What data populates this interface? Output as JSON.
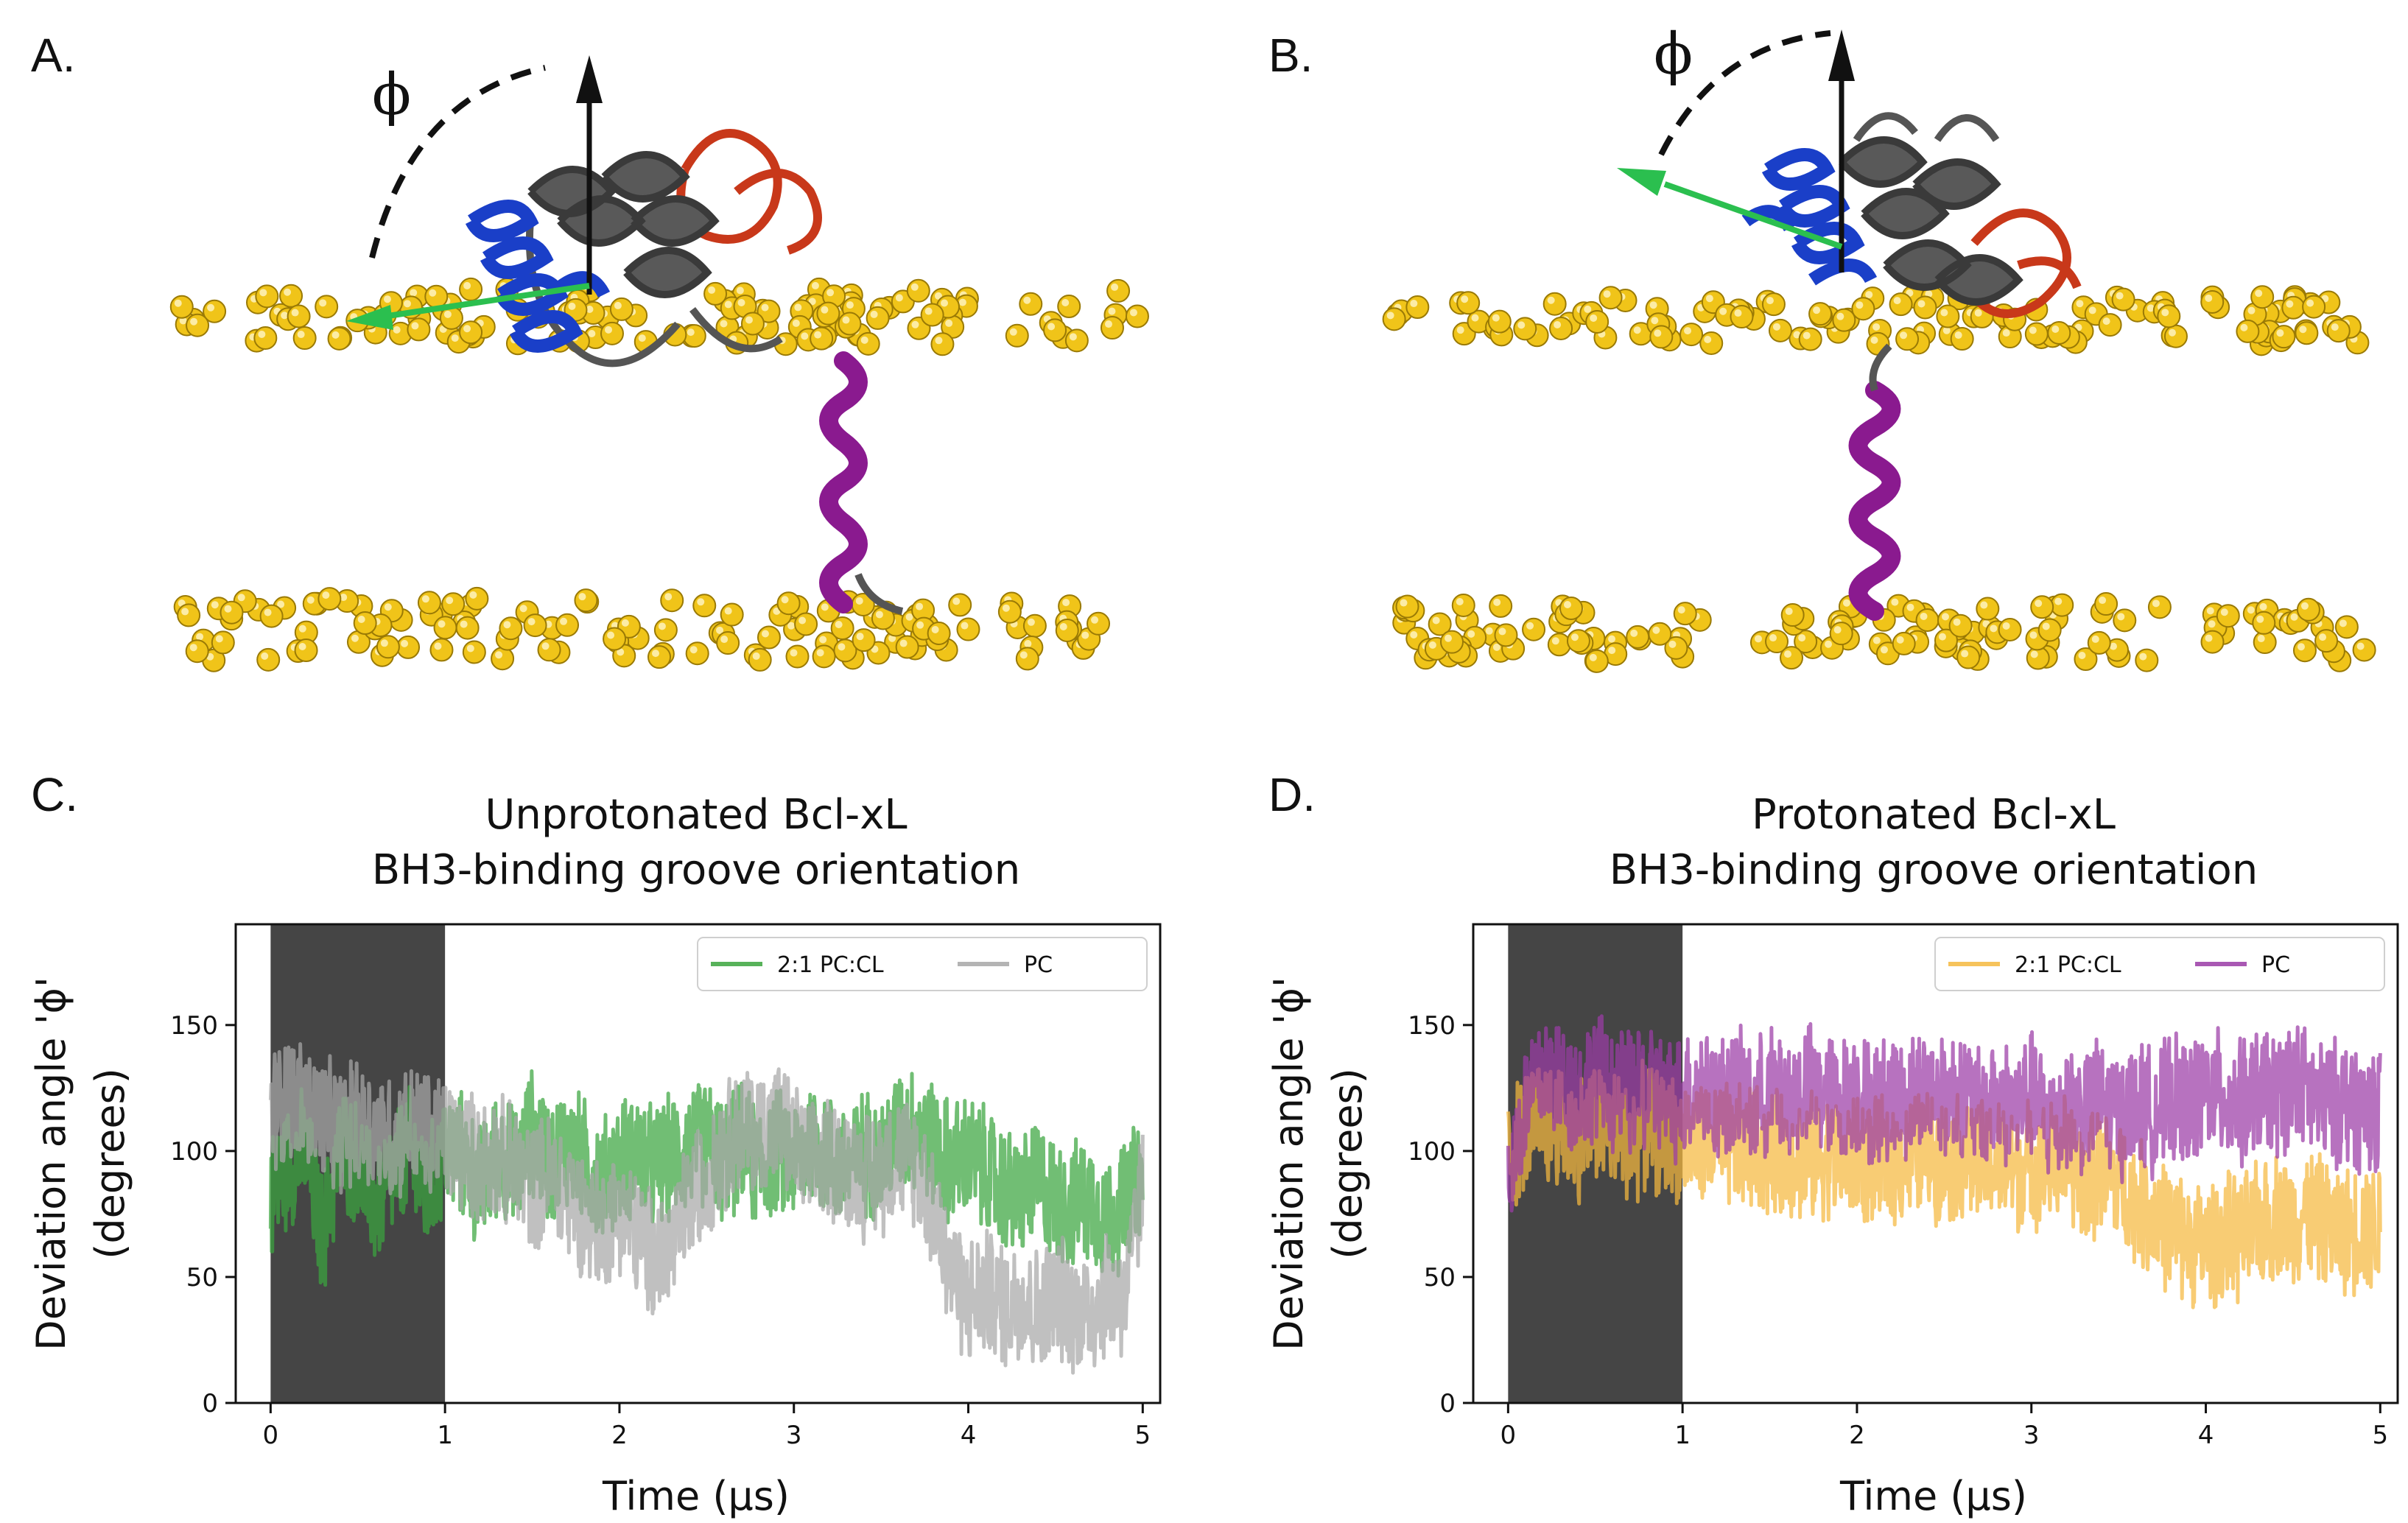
{
  "panels": {
    "a": {
      "label": "A.",
      "phi": "ϕ"
    },
    "b": {
      "label": "B.",
      "phi": "ϕ"
    },
    "c": {
      "label": "C."
    },
    "d": {
      "label": "D."
    }
  },
  "colors": {
    "lipid_head": "#f0c419",
    "bh3_helix": "#1a3fc8",
    "core_helix": "#4a4a4a",
    "loop_red": "#c8381a",
    "tm_helix": "#8a1a8f",
    "vector": "#2bbf4f",
    "shade": "#454545"
  },
  "chart_data": [
    {
      "type": "line",
      "title": [
        "Unprotonated Bcl-xL",
        "BH3-binding groove orientation"
      ],
      "xlabel": "Time (µs)",
      "ylabel": [
        "Deviation angle 'ϕ'",
        "(degrees)"
      ],
      "xlim": [
        -0.2,
        5.1
      ],
      "ylim": [
        0,
        190
      ],
      "xticks": [
        0,
        1,
        2,
        3,
        4,
        5
      ],
      "yticks": [
        0,
        50,
        100,
        150
      ],
      "shaded_region": [
        0,
        1
      ],
      "legend_position": "top-right",
      "series": [
        {
          "name": "2:1 PC:CL",
          "color": "#3aa53e",
          "points": [
            [
              0,
              82
            ],
            [
              0.1,
              95
            ],
            [
              0.2,
              100
            ],
            [
              0.3,
              65
            ],
            [
              0.4,
              102
            ],
            [
              0.5,
              95
            ],
            [
              0.6,
              78
            ],
            [
              0.7,
              90
            ],
            [
              0.8,
              100
            ],
            [
              0.9,
              82
            ],
            [
              1.0,
              100
            ],
            [
              1.1,
              98
            ],
            [
              1.2,
              85
            ],
            [
              1.3,
              100
            ],
            [
              1.4,
              92
            ],
            [
              1.5,
              108
            ],
            [
              1.6,
              95
            ],
            [
              1.7,
              102
            ],
            [
              1.8,
              96
            ],
            [
              1.9,
              88
            ],
            [
              2.0,
              95
            ],
            [
              2.1,
              100
            ],
            [
              2.2,
              92
            ],
            [
              2.3,
              98
            ],
            [
              2.4,
              100
            ],
            [
              2.5,
              104
            ],
            [
              2.6,
              96
            ],
            [
              2.7,
              102
            ],
            [
              2.8,
              94
            ],
            [
              2.9,
              100
            ],
            [
              3.0,
              96
            ],
            [
              3.1,
              104
            ],
            [
              3.2,
              98
            ],
            [
              3.3,
              92
            ],
            [
              3.4,
              100
            ],
            [
              3.5,
              96
            ],
            [
              3.6,
              108
            ],
            [
              3.7,
              110
            ],
            [
              3.8,
              102
            ],
            [
              3.9,
              95
            ],
            [
              4.0,
              98
            ],
            [
              4.1,
              92
            ],
            [
              4.2,
              85
            ],
            [
              4.3,
              82
            ],
            [
              4.4,
              88
            ],
            [
              4.5,
              80
            ],
            [
              4.6,
              78
            ],
            [
              4.7,
              82
            ],
            [
              4.8,
              72
            ],
            [
              4.9,
              80
            ],
            [
              5.0,
              90
            ]
          ]
        },
        {
          "name": "PC",
          "color": "#a8a8a8",
          "points": [
            [
              0,
              115
            ],
            [
              0.1,
              122
            ],
            [
              0.2,
              118
            ],
            [
              0.3,
              112
            ],
            [
              0.4,
              108
            ],
            [
              0.5,
              112
            ],
            [
              0.6,
              108
            ],
            [
              0.7,
              105
            ],
            [
              0.8,
              110
            ],
            [
              0.9,
              106
            ],
            [
              1.0,
              105
            ],
            [
              1.1,
              100
            ],
            [
              1.2,
              96
            ],
            [
              1.3,
              98
            ],
            [
              1.4,
              92
            ],
            [
              1.5,
              86
            ],
            [
              1.6,
              90
            ],
            [
              1.7,
              82
            ],
            [
              1.8,
              75
            ],
            [
              1.9,
              70
            ],
            [
              2.0,
              78
            ],
            [
              2.1,
              66
            ],
            [
              2.2,
              58
            ],
            [
              2.3,
              62
            ],
            [
              2.4,
              80
            ],
            [
              2.5,
              92
            ],
            [
              2.6,
              102
            ],
            [
              2.7,
              110
            ],
            [
              2.8,
              106
            ],
            [
              2.9,
              112
            ],
            [
              3.0,
              102
            ],
            [
              3.1,
              92
            ],
            [
              3.2,
              98
            ],
            [
              3.3,
              94
            ],
            [
              3.4,
              90
            ],
            [
              3.5,
              92
            ],
            [
              3.6,
              98
            ],
            [
              3.7,
              96
            ],
            [
              3.8,
              78
            ],
            [
              3.9,
              52
            ],
            [
              4.0,
              40
            ],
            [
              4.1,
              44
            ],
            [
              4.2,
              38
            ],
            [
              4.3,
              42
            ],
            [
              4.4,
              36
            ],
            [
              4.5,
              42
            ],
            [
              4.6,
              38
            ],
            [
              4.7,
              35
            ],
            [
              4.8,
              45
            ],
            [
              4.9,
              40
            ],
            [
              5.0,
              88
            ]
          ]
        }
      ]
    },
    {
      "type": "line",
      "title": [
        "Protonated Bcl-xL",
        "BH3-binding groove orientation"
      ],
      "xlabel": "Time (µs)",
      "ylabel": [
        "Deviation angle 'ϕ'",
        "(degrees)"
      ],
      "xlim": [
        -0.2,
        5.1
      ],
      "ylim": [
        0,
        190
      ],
      "xticks": [
        0,
        1,
        2,
        3,
        4,
        5
      ],
      "yticks": [
        0,
        50,
        100,
        150
      ],
      "shaded_region": [
        0,
        1
      ],
      "legend_position": "top-right",
      "series": [
        {
          "name": "2:1 PC:CL",
          "color": "#f5b93f",
          "points": [
            [
              0,
              100
            ],
            [
              0.1,
              108
            ],
            [
              0.2,
              112
            ],
            [
              0.3,
              110
            ],
            [
              0.4,
              105
            ],
            [
              0.5,
              112
            ],
            [
              0.6,
              108
            ],
            [
              0.7,
              104
            ],
            [
              0.8,
              110
            ],
            [
              0.9,
              106
            ],
            [
              1.0,
              105
            ],
            [
              1.1,
              102
            ],
            [
              1.2,
              104
            ],
            [
              1.3,
              100
            ],
            [
              1.4,
              102
            ],
            [
              1.5,
              98
            ],
            [
              1.6,
              100
            ],
            [
              1.7,
              97
            ],
            [
              1.8,
              99
            ],
            [
              1.9,
              96
            ],
            [
              2.0,
              98
            ],
            [
              2.1,
              95
            ],
            [
              2.2,
              96
            ],
            [
              2.3,
              98
            ],
            [
              2.4,
              100
            ],
            [
              2.5,
              96
            ],
            [
              2.6,
              98
            ],
            [
              2.7,
              95
            ],
            [
              2.8,
              96
            ],
            [
              2.9,
              92
            ],
            [
              3.0,
              96
            ],
            [
              3.1,
              94
            ],
            [
              3.2,
              98
            ],
            [
              3.3,
              88
            ],
            [
              3.4,
              92
            ],
            [
              3.5,
              88
            ],
            [
              3.6,
              80
            ],
            [
              3.7,
              75
            ],
            [
              3.8,
              68
            ],
            [
              3.9,
              65
            ],
            [
              4.0,
              62
            ],
            [
              4.1,
              66
            ],
            [
              4.2,
              65
            ],
            [
              4.3,
              70
            ],
            [
              4.4,
              75
            ],
            [
              4.5,
              72
            ],
            [
              4.6,
              76
            ],
            [
              4.7,
              70
            ],
            [
              4.8,
              68
            ],
            [
              4.9,
              70
            ],
            [
              5.0,
              70
            ]
          ]
        },
        {
          "name": "PC",
          "color": "#9b3ca6",
          "points": [
            [
              0,
              90
            ],
            [
              0.1,
              118
            ],
            [
              0.2,
              132
            ],
            [
              0.3,
              128
            ],
            [
              0.4,
              122
            ],
            [
              0.5,
              130
            ],
            [
              0.6,
              125
            ],
            [
              0.7,
              122
            ],
            [
              0.8,
              126
            ],
            [
              0.9,
              120
            ],
            [
              1.0,
              122
            ],
            [
              1.1,
              126
            ],
            [
              1.2,
              120
            ],
            [
              1.3,
              124
            ],
            [
              1.4,
              118
            ],
            [
              1.5,
              124
            ],
            [
              1.6,
              120
            ],
            [
              1.7,
              126
            ],
            [
              1.8,
              122
            ],
            [
              1.9,
              120
            ],
            [
              2.0,
              124
            ],
            [
              2.1,
              118
            ],
            [
              2.2,
              122
            ],
            [
              2.3,
              120
            ],
            [
              2.4,
              126
            ],
            [
              2.5,
              122
            ],
            [
              2.6,
              124
            ],
            [
              2.7,
              116
            ],
            [
              2.8,
              120
            ],
            [
              2.9,
              118
            ],
            [
              3.0,
              122
            ],
            [
              3.1,
              112
            ],
            [
              3.2,
              118
            ],
            [
              3.3,
              116
            ],
            [
              3.4,
              120
            ],
            [
              3.5,
              114
            ],
            [
              3.6,
              118
            ],
            [
              3.7,
              116
            ],
            [
              3.8,
              120
            ],
            [
              3.9,
              118
            ],
            [
              4.0,
              124
            ],
            [
              4.1,
              122
            ],
            [
              4.2,
              118
            ],
            [
              4.3,
              124
            ],
            [
              4.4,
              122
            ],
            [
              4.5,
              128
            ],
            [
              4.6,
              122
            ],
            [
              4.7,
              118
            ],
            [
              4.8,
              120
            ],
            [
              4.9,
              116
            ],
            [
              5.0,
              118
            ]
          ]
        }
      ]
    }
  ]
}
